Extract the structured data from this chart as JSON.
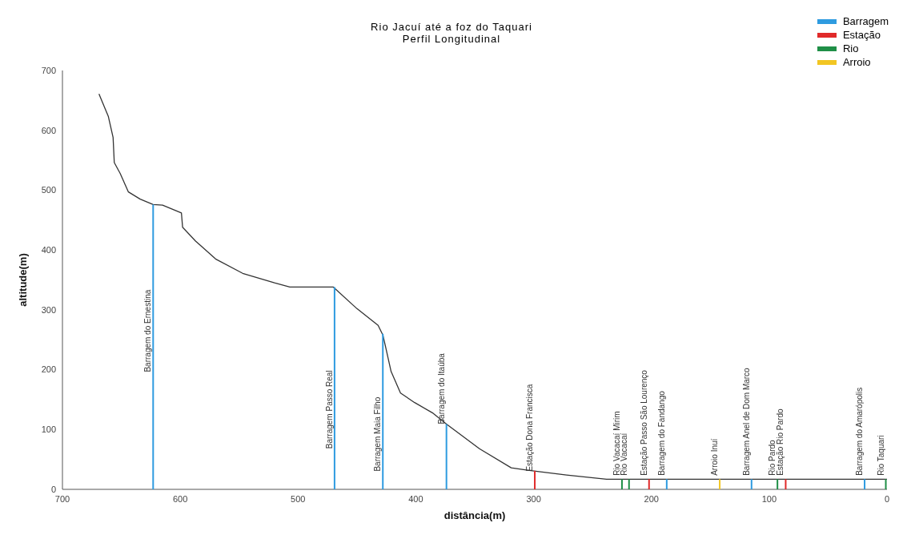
{
  "chart_data": {
    "type": "line",
    "title": "Rio Jacuí até a foz do Taquari",
    "subtitle": "Perfil Longitudinal",
    "xlabel": "distância(m)",
    "ylabel": "altitude(m)",
    "xlim": [
      700,
      0
    ],
    "xticks": [
      700,
      600,
      500,
      400,
      300,
      200,
      100,
      0
    ],
    "ylim": [
      0,
      700
    ],
    "yticks": [
      0,
      {
        "value": 100,
        "label": "100"
      },
      200,
      300,
      400,
      500,
      600,
      700
    ],
    "grid": false,
    "legend": "top right",
    "marker": "none",
    "line_style": "solid",
    "series": [
      {
        "color": "#333333",
        "x": [
          669,
          661,
          657,
          656,
          651,
          644,
          634,
          623,
          615,
          599,
          598,
          587,
          570,
          547,
          520,
          507,
          470,
          450,
          432,
          428,
          426,
          421,
          413,
          401,
          386,
          374,
          346,
          319,
          305,
          272,
          238,
          0
        ],
        "values": [
          661,
          623,
          588,
          546,
          528,
          497,
          485,
          476,
          475,
          462,
          438,
          415,
          385,
          361,
          345,
          338,
          338,
          302,
          274,
          258,
          241,
          197,
          161,
          145,
          128,
          109,
          68,
          36,
          32,
          24,
          17,
          17
        ]
      },
      {
        "type": "bar",
        "name": "Barragem",
        "color": "#2e9be0",
        "x": [
          623,
          469,
          428,
          374,
          187,
          115,
          19
        ],
        "values": [
          476,
          338,
          260,
          109,
          17,
          17,
          17
        ]
      },
      {
        "type": "bar",
        "name": "Estação",
        "color": "#e02a2a",
        "x": [
          299,
          202,
          86
        ],
        "values": [
          31,
          17,
          17
        ]
      },
      {
        "type": "bar",
        "name": "Rio",
        "color": "#1f8f47",
        "x": [
          225,
          219,
          93,
          1
        ],
        "values": [
          17,
          17,
          17,
          17
        ]
      },
      {
        "type": "bar",
        "name": "Arroio",
        "color": "#f2c623",
        "x": [
          142
        ],
        "values": [
          17
        ]
      }
    ],
    "annotations": [
      {
        "text": "Barragem do Ernestina",
        "x": 623,
        "y": 196
      },
      {
        "text": "Barragem Passo Real",
        "x": 469,
        "y": 68
      },
      {
        "text": "Barragem Maia Filho",
        "x": 428,
        "y": 30
      },
      {
        "text": "Barragem do Itaúba",
        "x": 374,
        "y": 109
      },
      {
        "text": "Estação Dona Francisca",
        "x": 299,
        "y": 30
      },
      {
        "text": "Rio Vacacaí Mirim",
        "x": 225,
        "y": 23
      },
      {
        "text": "Rio Vacacaí",
        "x": 219,
        "y": 23
      },
      {
        "text": "Estação Passo São Lourenço",
        "x": 202,
        "y": 23
      },
      {
        "text": "Barragem do Fandango",
        "x": 187,
        "y": 23
      },
      {
        "text": "Arroio Inuí",
        "x": 142,
        "y": 23
      },
      {
        "text": "Barragem Anel de Dom Marco",
        "x": 115,
        "y": 23
      },
      {
        "text": "Rio Pardo",
        "x": 93,
        "y": 23
      },
      {
        "text": "Estação Rio Pardo",
        "x": 86,
        "y": 23
      },
      {
        "text": "Barragem do Amarópolis",
        "x": 19,
        "y": 23
      },
      {
        "text": "Rio Taquari",
        "x": 1,
        "y": 23
      }
    ]
  }
}
